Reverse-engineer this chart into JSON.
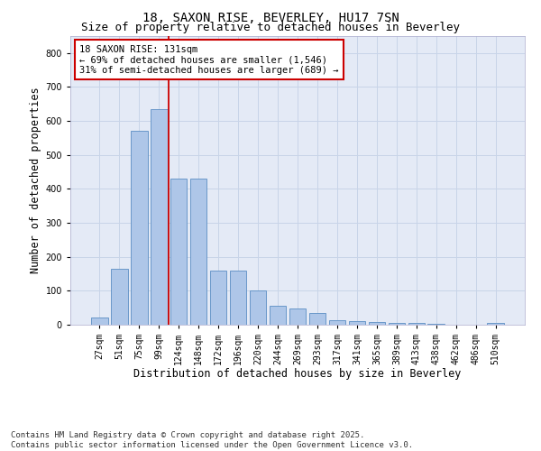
{
  "title1": "18, SAXON RISE, BEVERLEY, HU17 7SN",
  "title2": "Size of property relative to detached houses in Beverley",
  "xlabel": "Distribution of detached houses by size in Beverley",
  "ylabel": "Number of detached properties",
  "categories": [
    "27sqm",
    "51sqm",
    "75sqm",
    "99sqm",
    "124sqm",
    "148sqm",
    "172sqm",
    "196sqm",
    "220sqm",
    "244sqm",
    "269sqm",
    "293sqm",
    "317sqm",
    "341sqm",
    "365sqm",
    "389sqm",
    "413sqm",
    "438sqm",
    "462sqm",
    "486sqm",
    "510sqm"
  ],
  "values": [
    20,
    165,
    570,
    635,
    430,
    430,
    160,
    160,
    100,
    57,
    48,
    35,
    13,
    10,
    8,
    5,
    4,
    2,
    1,
    0,
    5
  ],
  "bar_color": "#aec6e8",
  "bar_edge_color": "#5b8ec4",
  "vline_color": "#cc0000",
  "vline_x": 3.5,
  "annotation_text": "18 SAXON RISE: 131sqm\n← 69% of detached houses are smaller (1,546)\n31% of semi-detached houses are larger (689) →",
  "annotation_box_facecolor": "#ffffff",
  "annotation_box_edgecolor": "#cc0000",
  "ylim": [
    0,
    850
  ],
  "yticks": [
    0,
    100,
    200,
    300,
    400,
    500,
    600,
    700,
    800
  ],
  "grid_color": "#c8d4e8",
  "background_color": "#e4eaf6",
  "footer1": "Contains HM Land Registry data © Crown copyright and database right 2025.",
  "footer2": "Contains public sector information licensed under the Open Government Licence v3.0.",
  "title_fontsize": 10,
  "subtitle_fontsize": 9,
  "tick_fontsize": 7,
  "label_fontsize": 8.5,
  "annotation_fontsize": 7.5,
  "footer_fontsize": 6.5
}
